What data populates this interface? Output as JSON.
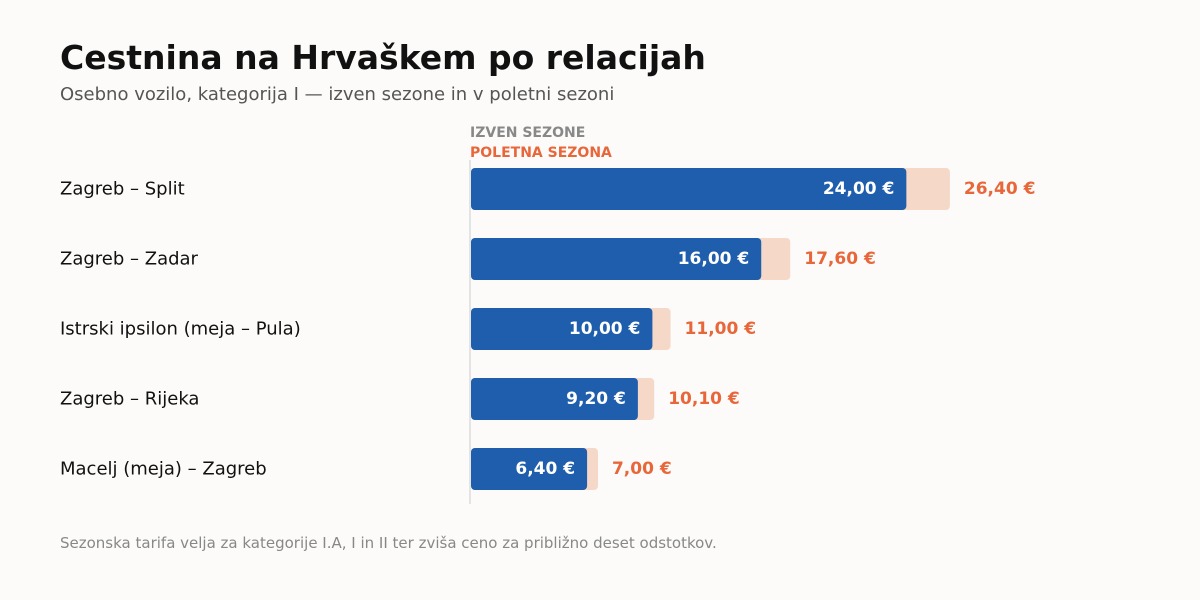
{
  "colors": {
    "off_season": "#1f5eac",
    "summer_season": "#e8673a",
    "summer_bar_fill": "#f5d8c7",
    "axis_line": "#dddddd",
    "legend_off_text": "#888888",
    "route_label": "#111111",
    "value_label_inside": "#ffffff"
  },
  "header": {
    "title": "Cestnina na Hrvaškem po relacijah",
    "subtitle": "Osebno vozilo, kategorija I — izven sezone in v poletni sezoni"
  },
  "legend": {
    "off_season": "IZVEN SEZONE",
    "summer_season": "POLETNA SEZONA"
  },
  "footnote": "Sezonska tarifa velja za kategorije I.A, I in II ter zviša ceno za približno deset odstotkov.",
  "chart_data": {
    "type": "bar",
    "orientation": "horizontal",
    "title": "Cestnina na Hrvaškem po relacijah",
    "subtitle": "Osebno vozilo, kategorija I — izven sezone in v poletni sezoni",
    "categories": [
      "Zagreb – Split",
      "Zagreb – Zadar",
      "Istrski ipsilon (meja – Pula)",
      "Zagreb – Rijeka",
      "Macelj (meja) – Zagreb"
    ],
    "series": [
      {
        "name": "IZVEN SEZONE",
        "values": [
          24.0,
          16.0,
          10.0,
          9.2,
          6.4
        ],
        "labels": [
          "24,00 €",
          "16,00 €",
          "10,00 €",
          "9,20 €",
          "6,40 €"
        ]
      },
      {
        "name": "POLETNA SEZONA",
        "values": [
          26.4,
          17.6,
          11.0,
          10.1,
          7.0
        ],
        "labels": [
          "26,40 €",
          "17,60 €",
          "11,00 €",
          "10,10 €",
          "7,00 €"
        ]
      }
    ],
    "xlim": [
      0,
      26.4
    ],
    "grid": false,
    "legend_position": "top-left"
  }
}
